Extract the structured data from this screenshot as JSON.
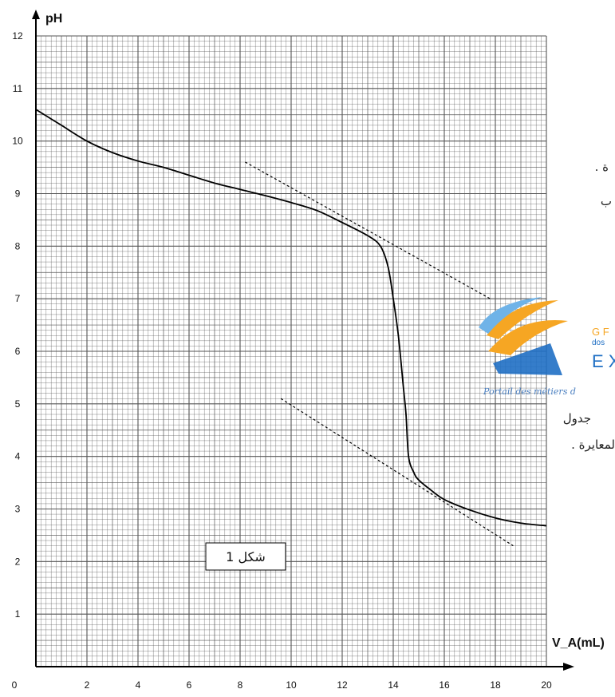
{
  "chart_data": {
    "type": "line",
    "title": "",
    "xlabel": "V_A(mL)",
    "ylabel": "pH",
    "xlim": [
      0,
      20
    ],
    "ylim": [
      0,
      12
    ],
    "x_ticks": [
      0,
      2,
      4,
      6,
      8,
      10,
      12,
      14,
      16,
      18,
      20
    ],
    "y_ticks": [
      1,
      2,
      3,
      4,
      5,
      6,
      7,
      8,
      9,
      10,
      11,
      12
    ],
    "grid": true,
    "figure_label": "شكل 1",
    "series": [
      {
        "style": "solid",
        "points": [
          [
            0,
            10.6
          ],
          [
            0.5,
            10.45
          ],
          [
            1,
            10.3
          ],
          [
            2,
            10.0
          ],
          [
            3,
            9.78
          ],
          [
            4,
            9.62
          ],
          [
            5,
            9.5
          ],
          [
            6,
            9.35
          ],
          [
            7,
            9.2
          ],
          [
            8,
            9.08
          ],
          [
            9,
            8.96
          ],
          [
            10,
            8.83
          ],
          [
            11,
            8.68
          ],
          [
            12,
            8.45
          ],
          [
            13,
            8.2
          ],
          [
            13.5,
            8.0
          ],
          [
            13.8,
            7.6
          ],
          [
            14.0,
            7.0
          ],
          [
            14.2,
            6.3
          ],
          [
            14.4,
            5.3
          ],
          [
            14.5,
            4.8
          ],
          [
            14.6,
            4.0
          ],
          [
            14.8,
            3.7
          ],
          [
            15,
            3.55
          ],
          [
            15.5,
            3.35
          ],
          [
            16,
            3.18
          ],
          [
            17,
            2.98
          ],
          [
            18,
            2.83
          ],
          [
            19,
            2.73
          ],
          [
            20,
            2.68
          ]
        ]
      },
      {
        "style": "dashed",
        "points": [
          [
            8.2,
            9.6
          ],
          [
            17.8,
            7.0
          ]
        ]
      },
      {
        "style": "dashed",
        "points": [
          [
            9.6,
            5.1
          ],
          [
            18.7,
            2.3
          ]
        ]
      }
    ]
  },
  "side_text": {
    "line1": "ة .",
    "line2": "ب",
    "line3": "جدول",
    "line4": "لمعايرة ."
  },
  "logo": {
    "text_top": "G F",
    "text_mid": "dos",
    "text_big": "E X",
    "tagline": "Portail des métiers d",
    "colors": {
      "orange": "#f6a623",
      "blue": "#1f6fc4",
      "light_blue": "#6fb3e8"
    }
  },
  "colors": {
    "grid": "#555555",
    "curve": "#000000",
    "axis": "#000000"
  }
}
